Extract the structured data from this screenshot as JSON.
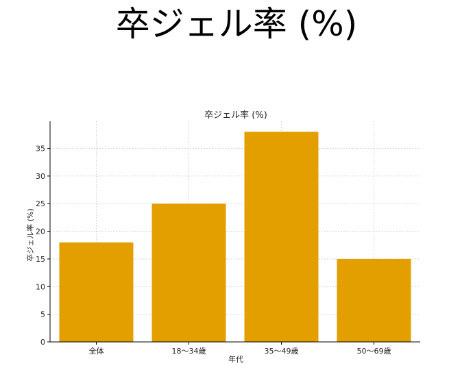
{
  "page_title": "卒ジェル率 (%)",
  "chart_data": {
    "type": "bar",
    "title": "卒ジェル率 (%)",
    "xlabel": "年代",
    "ylabel": "卒ジェル率 (%)",
    "categories": [
      "全体",
      "18〜34歳",
      "35〜49歳",
      "50〜69歳"
    ],
    "values": [
      18,
      25,
      38,
      15
    ],
    "ylim": [
      0,
      39.9
    ],
    "yticks": [
      0,
      5,
      10,
      15,
      20,
      25,
      30,
      35
    ],
    "grid": true,
    "bar_color": "#E39F00"
  }
}
